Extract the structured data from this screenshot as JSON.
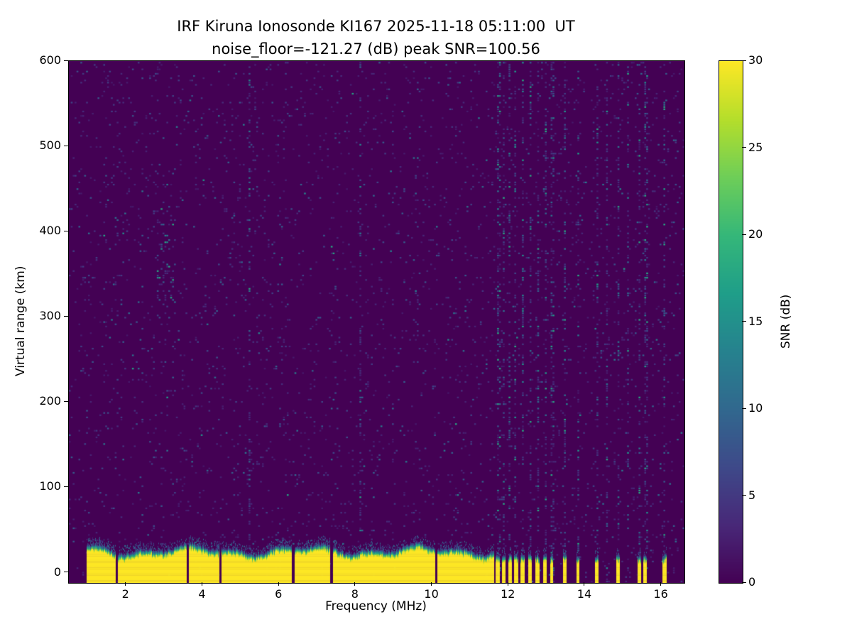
{
  "chart_data": {
    "type": "heatmap",
    "title": "IRF Kiruna Ionosonde KI167 2025-11-18 05:11:00  UT",
    "subtitle": "noise_floor=-121.27 (dB) peak SNR=100.56",
    "xlabel": "Frequency (MHz)",
    "ylabel": "Virtual range (km)",
    "x_range_mhz": [
      0.5,
      16.6
    ],
    "y_range_km": [
      -12,
      600
    ],
    "x_ticks": [
      2,
      4,
      6,
      8,
      10,
      12,
      14,
      16
    ],
    "y_ticks": [
      0,
      100,
      200,
      300,
      400,
      500,
      600
    ],
    "grid": false,
    "colorbar": {
      "label": "SNR (dB)",
      "range_db": [
        0,
        30
      ],
      "ticks": [
        0,
        5,
        10,
        15,
        20,
        25,
        30
      ],
      "colormap": "viridis"
    },
    "metrics": {
      "station": "KI167",
      "datetime_ut": "2025-11-18 05:11:00",
      "noise_floor_db": -121.27,
      "peak_snr_db": 100.56
    },
    "background_snr_db": 0,
    "noise": {
      "base_density": 0.045,
      "stripe_density": 0.32,
      "stripe_freqs_mhz": [
        5.2,
        8.1,
        11.72,
        11.86,
        12.0,
        12.16,
        12.34,
        12.55,
        12.75,
        12.95,
        13.12,
        13.45,
        13.8,
        14.3,
        14.55,
        14.85,
        15.1,
        15.4,
        15.57,
        16.05
      ],
      "cluster": {
        "f_mhz": [
          2.75,
          3.25
        ],
        "km": [
          290,
          430
        ],
        "density": 0.3
      }
    },
    "echo_band": {
      "start_mhz": 0.95,
      "end_mhz": 16.2,
      "continuous_until_mhz": 11.62,
      "top_km_mean": 28,
      "bar_top_km": 20,
      "gaps_mhz": [
        [
          1.72,
          1.77
        ],
        [
          3.58,
          3.63
        ],
        [
          4.42,
          4.48
        ],
        [
          6.33,
          6.39
        ],
        [
          7.33,
          7.39
        ],
        [
          10.08,
          10.12
        ]
      ],
      "bars_mhz": [
        [
          11.66,
          11.76
        ],
        [
          11.82,
          11.92
        ],
        [
          11.98,
          12.08
        ],
        [
          12.14,
          12.24
        ],
        [
          12.31,
          12.41
        ],
        [
          12.5,
          12.6
        ],
        [
          12.7,
          12.8
        ],
        [
          12.9,
          12.99
        ],
        [
          13.08,
          13.16
        ],
        [
          13.41,
          13.5
        ],
        [
          13.76,
          13.85
        ],
        [
          14.26,
          14.35
        ],
        [
          14.81,
          14.9
        ],
        [
          15.36,
          15.45
        ],
        [
          15.52,
          15.61
        ],
        [
          16.02,
          16.13
        ]
      ]
    }
  }
}
